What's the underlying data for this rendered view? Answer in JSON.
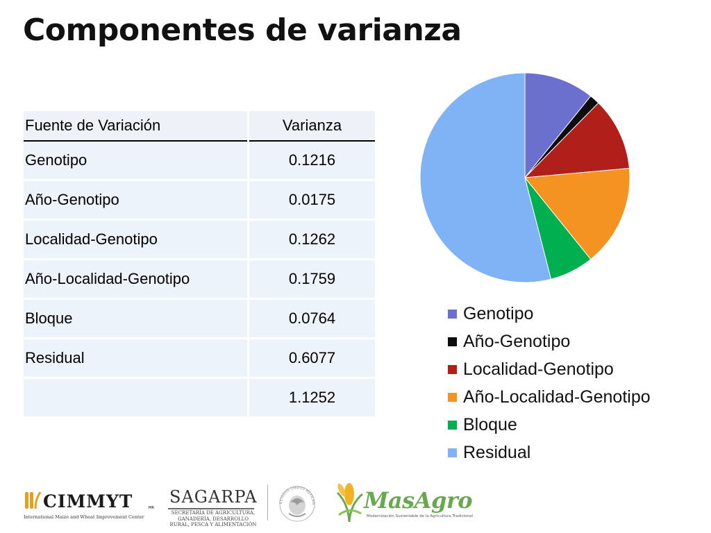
{
  "slide": {
    "title": "Componentes de varianza"
  },
  "table": {
    "headers": [
      "Fuente de Variación",
      "Varianza"
    ],
    "rows": [
      [
        "Genotipo",
        "0.1216"
      ],
      [
        "Año-Genotipo",
        "0.0175"
      ],
      [
        "Localidad-Genotipo",
        "0.1262"
      ],
      [
        "Año-Localidad-Genotipo",
        "0.1759"
      ],
      [
        "Bloque",
        "0.0764"
      ],
      [
        "Residual",
        "0.6077"
      ],
      [
        "",
        "1.1252"
      ]
    ]
  },
  "chart_data": {
    "type": "pie",
    "categories": [
      "Genotipo",
      "Año-Genotipo",
      "Localidad-Genotipo",
      "Año-Localidad-Genotipo",
      "Bloque",
      "Residual"
    ],
    "values": [
      0.1216,
      0.0175,
      0.1262,
      0.1759,
      0.0764,
      0.6077
    ],
    "colors": [
      "#6b6fce",
      "#0d0d0d",
      "#b01f1a",
      "#f59322",
      "#00b050",
      "#7fb3f5"
    ],
    "title": "",
    "legend": "bottom-right",
    "start_angle": "12 o'clock",
    "direction": "clockwise"
  },
  "logos": {
    "cimmyt": {
      "name": "CIMMYT",
      "mark": "MR",
      "tagline": "International Maize and Wheat Improvement Center"
    },
    "sagarpa": {
      "name": "SAGARPA",
      "tagline": "SECRETARÍA DE AGRICULTURA, GANADERÍA, DESARROLLO RURAL, PESCA Y ALIMENTACIÓN"
    },
    "seal": {
      "icon": "mexican-eagle-seal-icon",
      "text": "ESTADOS UNIDOS MEXICANOS"
    },
    "masagro": {
      "name": "MasAgro",
      "tagline": "Modernización Sustentable de la Agricultura Tradicional"
    }
  }
}
